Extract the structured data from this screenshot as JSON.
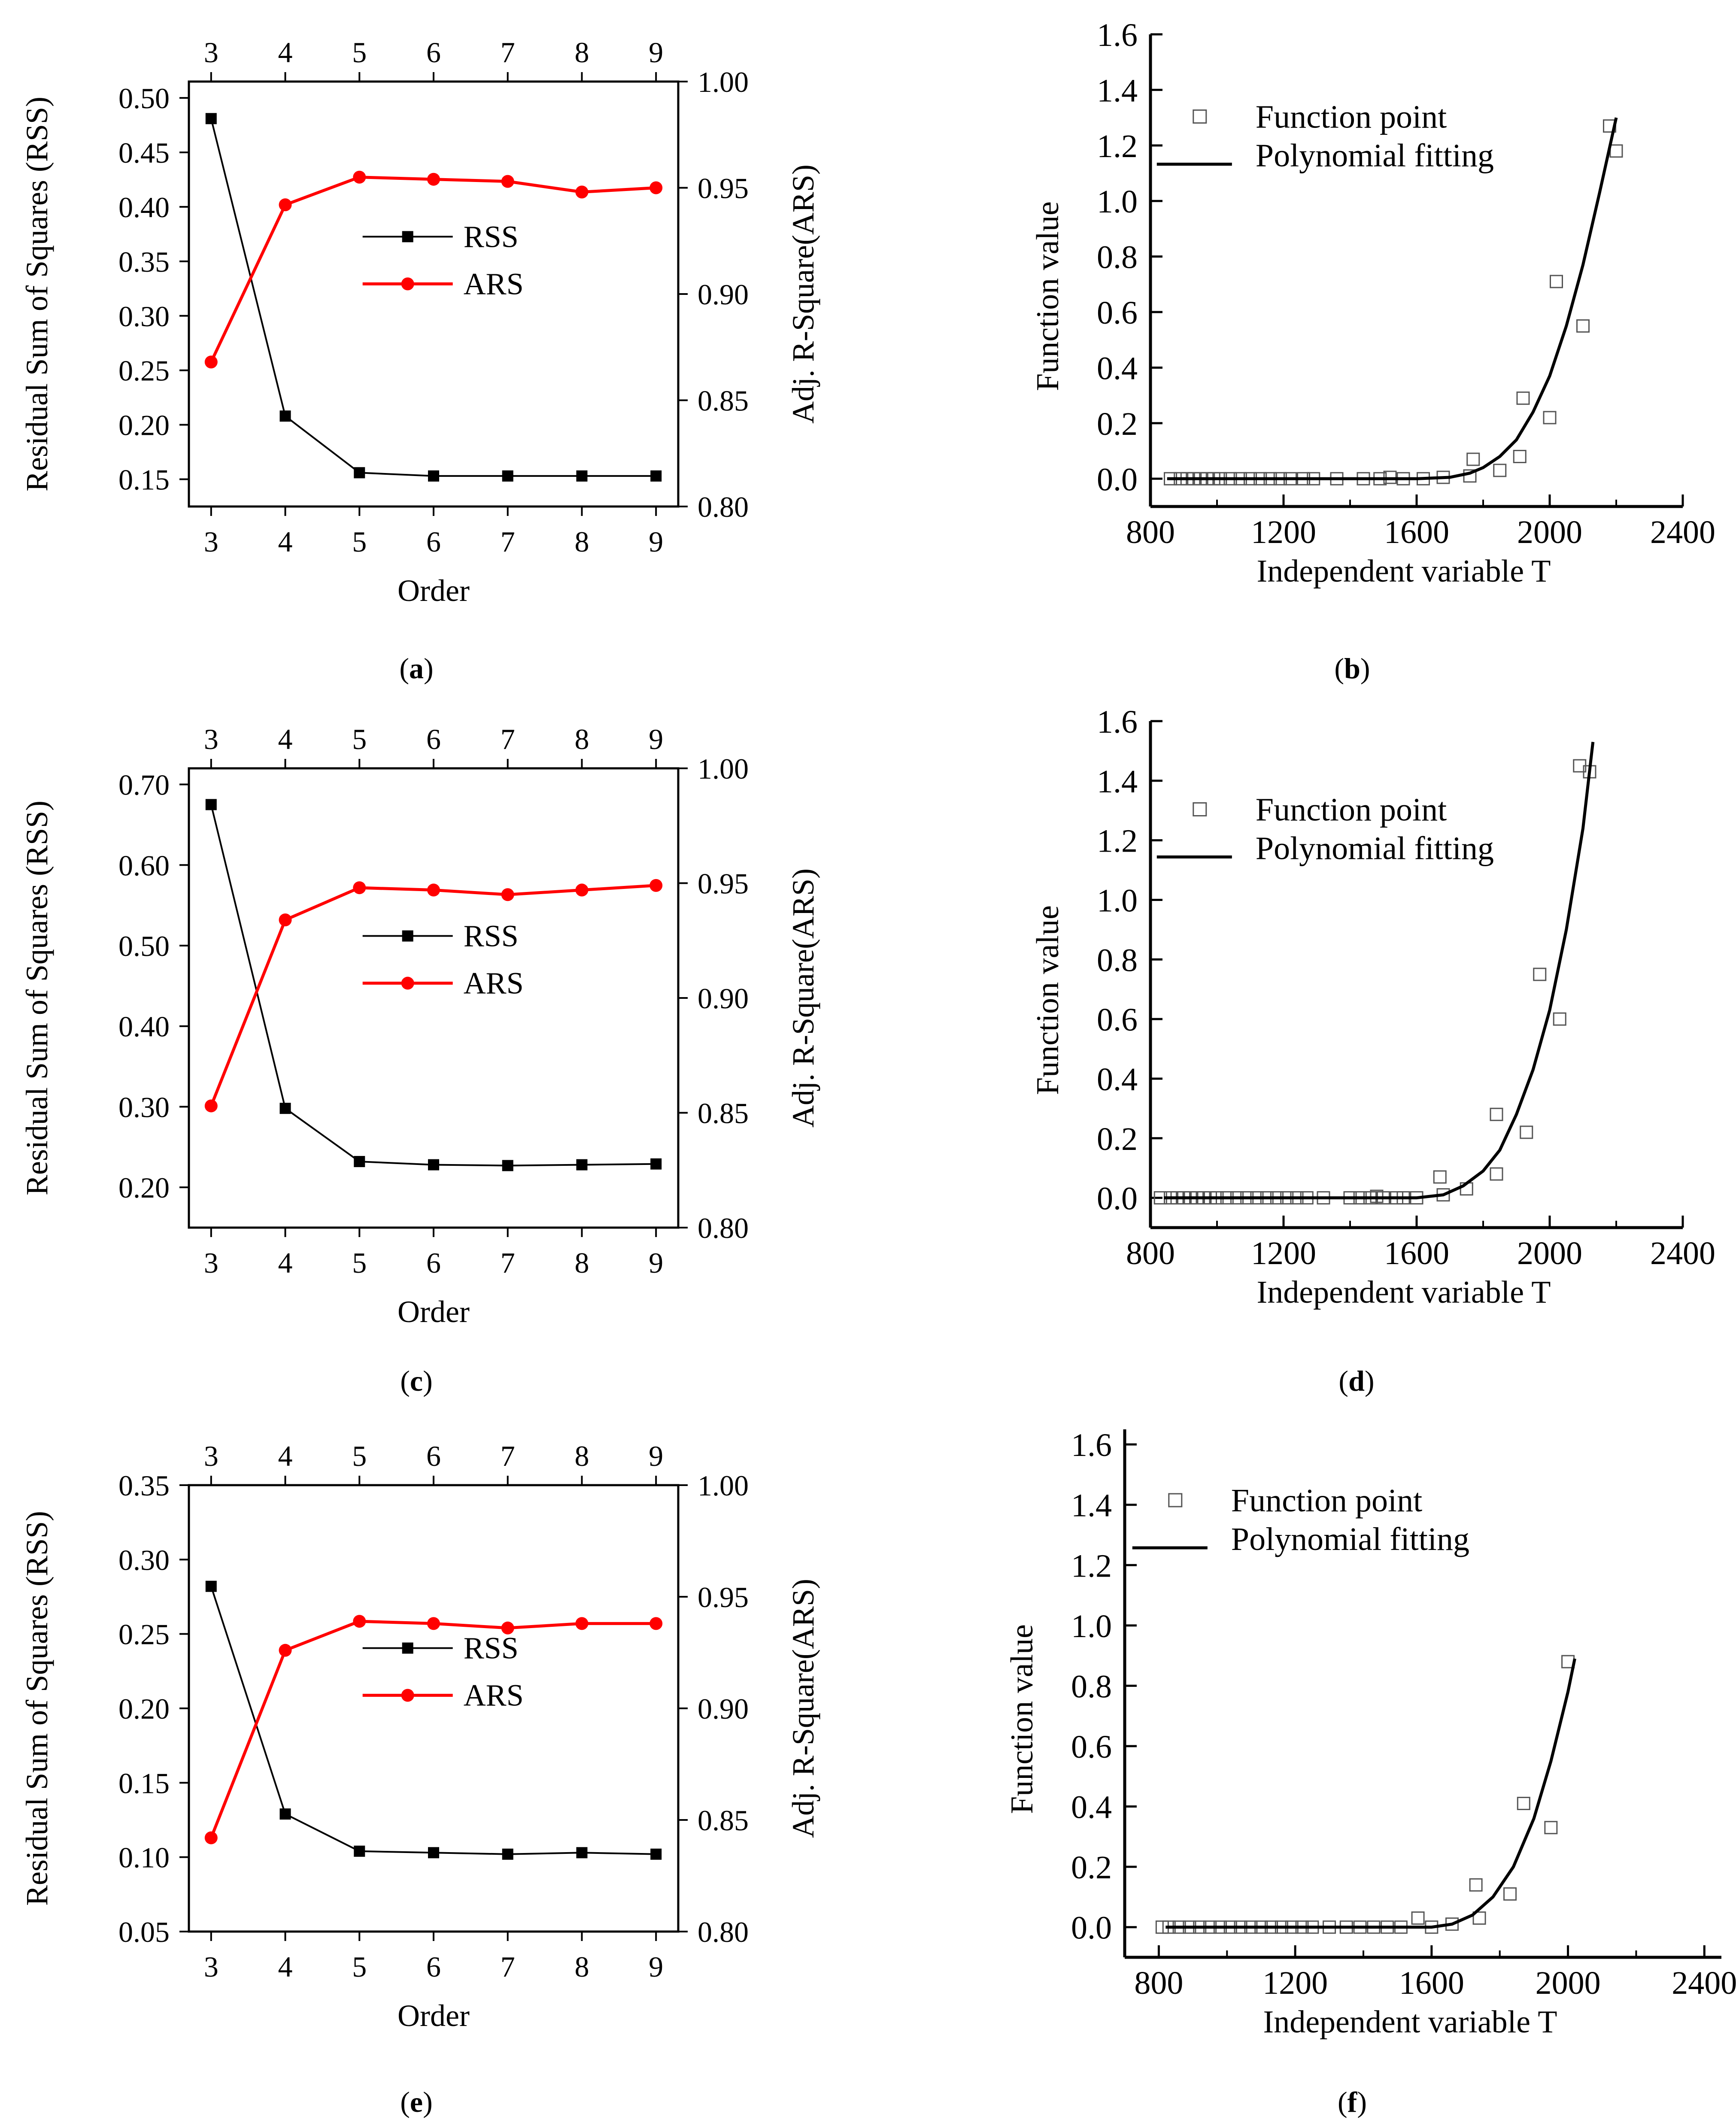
{
  "colors": {
    "rss": "#000000",
    "ars": "#ff0000",
    "axis": "#000000",
    "point": "#555555",
    "fit": "#000000"
  },
  "chart_data": [
    {
      "id": "a",
      "caption": "a",
      "type": "line",
      "x": [
        3,
        4,
        5,
        6,
        7,
        8,
        9
      ],
      "xlabel": "Order",
      "xticks": [
        3,
        4,
        5,
        6,
        7,
        8,
        9
      ],
      "xlim": [
        2.7,
        9.3
      ],
      "ylabel": "Residual Sum of Squares (RSS)",
      "ylim": [
        0.125,
        0.515
      ],
      "yticks": [
        "0.15",
        "0.20",
        "0.25",
        "0.30",
        "0.35",
        "0.40",
        "0.45",
        "0.50"
      ],
      "y2label": "Adj. R-Square(ARS)",
      "y2lim": [
        0.8,
        1.0
      ],
      "y2ticks": [
        "0.80",
        "0.85",
        "0.90",
        "0.95",
        "1.00"
      ],
      "series": [
        {
          "name": "RSS",
          "axis": "left",
          "marker": "square",
          "values": [
            0.481,
            0.208,
            0.156,
            0.153,
            0.153,
            0.153,
            0.153
          ]
        },
        {
          "name": "ARS",
          "axis": "right",
          "marker": "circle",
          "values": [
            0.868,
            0.942,
            0.955,
            0.954,
            0.953,
            0.948,
            0.95
          ]
        }
      ],
      "legend": "center-right"
    },
    {
      "id": "b",
      "caption": "b",
      "type": "scatter",
      "xlabel": "Independent variable  T",
      "xlim": [
        800,
        2400
      ],
      "xticks": [
        "800",
        "1200",
        "1600",
        "2000",
        "2400"
      ],
      "ylabel": "Function value",
      "ylim": [
        -0.1,
        1.6
      ],
      "yticks": [
        "0.0",
        "0.2",
        "0.4",
        "0.6",
        "0.8",
        "1.0",
        "1.2",
        "1.4",
        "1.6"
      ],
      "series": [
        {
          "name": "Function point",
          "marker": "open-square",
          "points": [
            [
              860,
              0
            ],
            [
              890,
              0
            ],
            [
              910,
              0
            ],
            [
              930,
              0
            ],
            [
              950,
              0
            ],
            [
              970,
              0
            ],
            [
              990,
              0
            ],
            [
              1010,
              0
            ],
            [
              1040,
              0
            ],
            [
              1070,
              0
            ],
            [
              1100,
              0
            ],
            [
              1130,
              0
            ],
            [
              1160,
              0
            ],
            [
              1190,
              0
            ],
            [
              1220,
              0
            ],
            [
              1260,
              0
            ],
            [
              1290,
              0
            ],
            [
              1360,
              0
            ],
            [
              1440,
              0
            ],
            [
              1490,
              0
            ],
            [
              1520,
              0.005
            ],
            [
              1560,
              0
            ],
            [
              1620,
              0
            ],
            [
              1680,
              0.005
            ],
            [
              1760,
              0.01
            ],
            [
              1770,
              0.07
            ],
            [
              1850,
              0.03
            ],
            [
              1910,
              0.08
            ],
            [
              1920,
              0.29
            ],
            [
              2000,
              0.22
            ],
            [
              2020,
              0.71
            ],
            [
              2100,
              0.55
            ],
            [
              2180,
              1.27
            ],
            [
              2200,
              1.18
            ]
          ]
        },
        {
          "name": "Polynomial fitting",
          "style": "line",
          "points": [
            [
              850,
              0
            ],
            [
              1000,
              0
            ],
            [
              1200,
              0
            ],
            [
              1400,
              0
            ],
            [
              1600,
              0
            ],
            [
              1700,
              0.005
            ],
            [
              1760,
              0.02
            ],
            [
              1800,
              0.04
            ],
            [
              1850,
              0.08
            ],
            [
              1900,
              0.14
            ],
            [
              1950,
              0.24
            ],
            [
              2000,
              0.37
            ],
            [
              2050,
              0.55
            ],
            [
              2100,
              0.77
            ],
            [
              2150,
              1.03
            ],
            [
              2200,
              1.3
            ]
          ]
        }
      ],
      "legend": "top-left"
    },
    {
      "id": "c",
      "caption": "c",
      "type": "line",
      "x": [
        3,
        4,
        5,
        6,
        7,
        8,
        9
      ],
      "xlabel": "Order",
      "xticks": [
        3,
        4,
        5,
        6,
        7,
        8,
        9
      ],
      "xlim": [
        2.7,
        9.3
      ],
      "ylabel": "Residual Sum of Squares (RSS)",
      "ylim": [
        0.15,
        0.72
      ],
      "yticks": [
        "0.20",
        "0.30",
        "0.40",
        "0.50",
        "0.60",
        "0.70"
      ],
      "y2label": "Adj. R-Square(ARS)",
      "y2lim": [
        0.8,
        1.0
      ],
      "y2ticks": [
        "0.80",
        "0.85",
        "0.90",
        "0.95",
        "1.00"
      ],
      "series": [
        {
          "name": "RSS",
          "axis": "left",
          "marker": "square",
          "values": [
            0.675,
            0.298,
            0.232,
            0.228,
            0.227,
            0.228,
            0.229
          ]
        },
        {
          "name": "ARS",
          "axis": "right",
          "marker": "circle",
          "values": [
            0.853,
            0.934,
            0.948,
            0.947,
            0.945,
            0.947,
            0.949
          ]
        }
      ],
      "legend": "center-right"
    },
    {
      "id": "d",
      "caption": "d",
      "type": "scatter",
      "xlabel": "Independent variable  T",
      "xlim": [
        800,
        2400
      ],
      "xticks": [
        "800",
        "1200",
        "1600",
        "2000",
        "2400"
      ],
      "ylabel": "Function value",
      "ylim": [
        -0.1,
        1.6
      ],
      "yticks": [
        "0.0",
        "0.2",
        "0.4",
        "0.6",
        "0.8",
        "1.0",
        "1.2",
        "1.4",
        "1.6"
      ],
      "series": [
        {
          "name": "Function point",
          "marker": "open-square",
          "points": [
            [
              830,
              0
            ],
            [
              860,
              0
            ],
            [
              880,
              0
            ],
            [
              900,
              0
            ],
            [
              920,
              0
            ],
            [
              940,
              0
            ],
            [
              960,
              0
            ],
            [
              980,
              0
            ],
            [
              1000,
              0
            ],
            [
              1030,
              0
            ],
            [
              1060,
              0
            ],
            [
              1090,
              0
            ],
            [
              1120,
              0
            ],
            [
              1150,
              0
            ],
            [
              1180,
              0
            ],
            [
              1210,
              0
            ],
            [
              1240,
              0
            ],
            [
              1270,
              0
            ],
            [
              1320,
              0
            ],
            [
              1400,
              0
            ],
            [
              1430,
              0
            ],
            [
              1460,
              0
            ],
            [
              1480,
              0.005
            ],
            [
              1500,
              0
            ],
            [
              1540,
              0
            ],
            [
              1560,
              0
            ],
            [
              1600,
              0
            ],
            [
              1670,
              0.07
            ],
            [
              1680,
              0.01
            ],
            [
              1750,
              0.03
            ],
            [
              1840,
              0.28
            ],
            [
              1840,
              0.08
            ],
            [
              1930,
              0.22
            ],
            [
              1970,
              0.75
            ],
            [
              2030,
              0.6
            ],
            [
              2090,
              1.45
            ],
            [
              2120,
              1.43
            ]
          ]
        },
        {
          "name": "Polynomial fitting",
          "style": "line",
          "points": [
            [
              840,
              0
            ],
            [
              1000,
              0
            ],
            [
              1200,
              0
            ],
            [
              1400,
              0
            ],
            [
              1600,
              0
            ],
            [
              1680,
              0.01
            ],
            [
              1740,
              0.04
            ],
            [
              1800,
              0.09
            ],
            [
              1850,
              0.16
            ],
            [
              1900,
              0.28
            ],
            [
              1950,
              0.43
            ],
            [
              2000,
              0.63
            ],
            [
              2050,
              0.9
            ],
            [
              2100,
              1.24
            ],
            [
              2130,
              1.53
            ]
          ]
        }
      ],
      "legend": "top-left"
    },
    {
      "id": "e",
      "caption": "e",
      "type": "line",
      "x": [
        3,
        4,
        5,
        6,
        7,
        8,
        9
      ],
      "xlabel": "Order",
      "xticks": [
        3,
        4,
        5,
        6,
        7,
        8,
        9
      ],
      "xlim": [
        2.7,
        9.3
      ],
      "ylabel": "Residual Sum of Squares (RSS)",
      "ylim": [
        0.05,
        0.35
      ],
      "yticks": [
        "0.05",
        "0.10",
        "0.15",
        "0.20",
        "0.25",
        "0.30",
        "0.35"
      ],
      "y2label": "Adj. R-Square(ARS)",
      "y2lim": [
        0.8,
        1.0
      ],
      "y2ticks": [
        "0.80",
        "0.85",
        "0.90",
        "0.95",
        "1.00"
      ],
      "series": [
        {
          "name": "RSS",
          "axis": "left",
          "marker": "square",
          "values": [
            0.282,
            0.129,
            0.104,
            0.103,
            0.102,
            0.103,
            0.102
          ]
        },
        {
          "name": "ARS",
          "axis": "right",
          "marker": "circle",
          "values": [
            0.842,
            0.926,
            0.939,
            0.938,
            0.936,
            0.938,
            0.938
          ]
        }
      ],
      "legend": "center-right"
    },
    {
      "id": "f",
      "caption": "f",
      "type": "scatter",
      "xlabel": "Independent variable  T",
      "xlim": [
        700,
        2450
      ],
      "xticks": [
        "800",
        "1200",
        "1600",
        "2000",
        "2400"
      ],
      "ylabel": "Function value",
      "ylim": [
        -0.1,
        1.65
      ],
      "yticks": [
        "0.0",
        "0.2",
        "0.4",
        "0.6",
        "0.8",
        "1.0",
        "1.2",
        "1.4",
        "1.6"
      ],
      "series": [
        {
          "name": "Function point",
          "marker": "open-square",
          "points": [
            [
              810,
              0
            ],
            [
              830,
              0
            ],
            [
              860,
              0
            ],
            [
              890,
              0
            ],
            [
              920,
              0
            ],
            [
              950,
              0
            ],
            [
              980,
              0
            ],
            [
              1010,
              0
            ],
            [
              1040,
              0
            ],
            [
              1070,
              0
            ],
            [
              1100,
              0
            ],
            [
              1130,
              0
            ],
            [
              1160,
              0
            ],
            [
              1190,
              0
            ],
            [
              1220,
              0
            ],
            [
              1250,
              0
            ],
            [
              1300,
              0
            ],
            [
              1350,
              0
            ],
            [
              1390,
              0
            ],
            [
              1430,
              0
            ],
            [
              1470,
              0
            ],
            [
              1510,
              0
            ],
            [
              1560,
              0.03
            ],
            [
              1600,
              0
            ],
            [
              1660,
              0.01
            ],
            [
              1730,
              0.14
            ],
            [
              1740,
              0.03
            ],
            [
              1830,
              0.11
            ],
            [
              1870,
              0.41
            ],
            [
              1950,
              0.33
            ],
            [
              2000,
              0.88
            ]
          ]
        },
        {
          "name": "Polynomial fitting",
          "style": "line",
          "points": [
            [
              820,
              0
            ],
            [
              1000,
              0
            ],
            [
              1200,
              0
            ],
            [
              1400,
              0
            ],
            [
              1600,
              0
            ],
            [
              1660,
              0.01
            ],
            [
              1720,
              0.04
            ],
            [
              1780,
              0.1
            ],
            [
              1840,
              0.2
            ],
            [
              1900,
              0.36
            ],
            [
              1950,
              0.55
            ],
            [
              2000,
              0.78
            ],
            [
              2020,
              0.89
            ]
          ]
        }
      ],
      "legend": "top-left"
    }
  ]
}
